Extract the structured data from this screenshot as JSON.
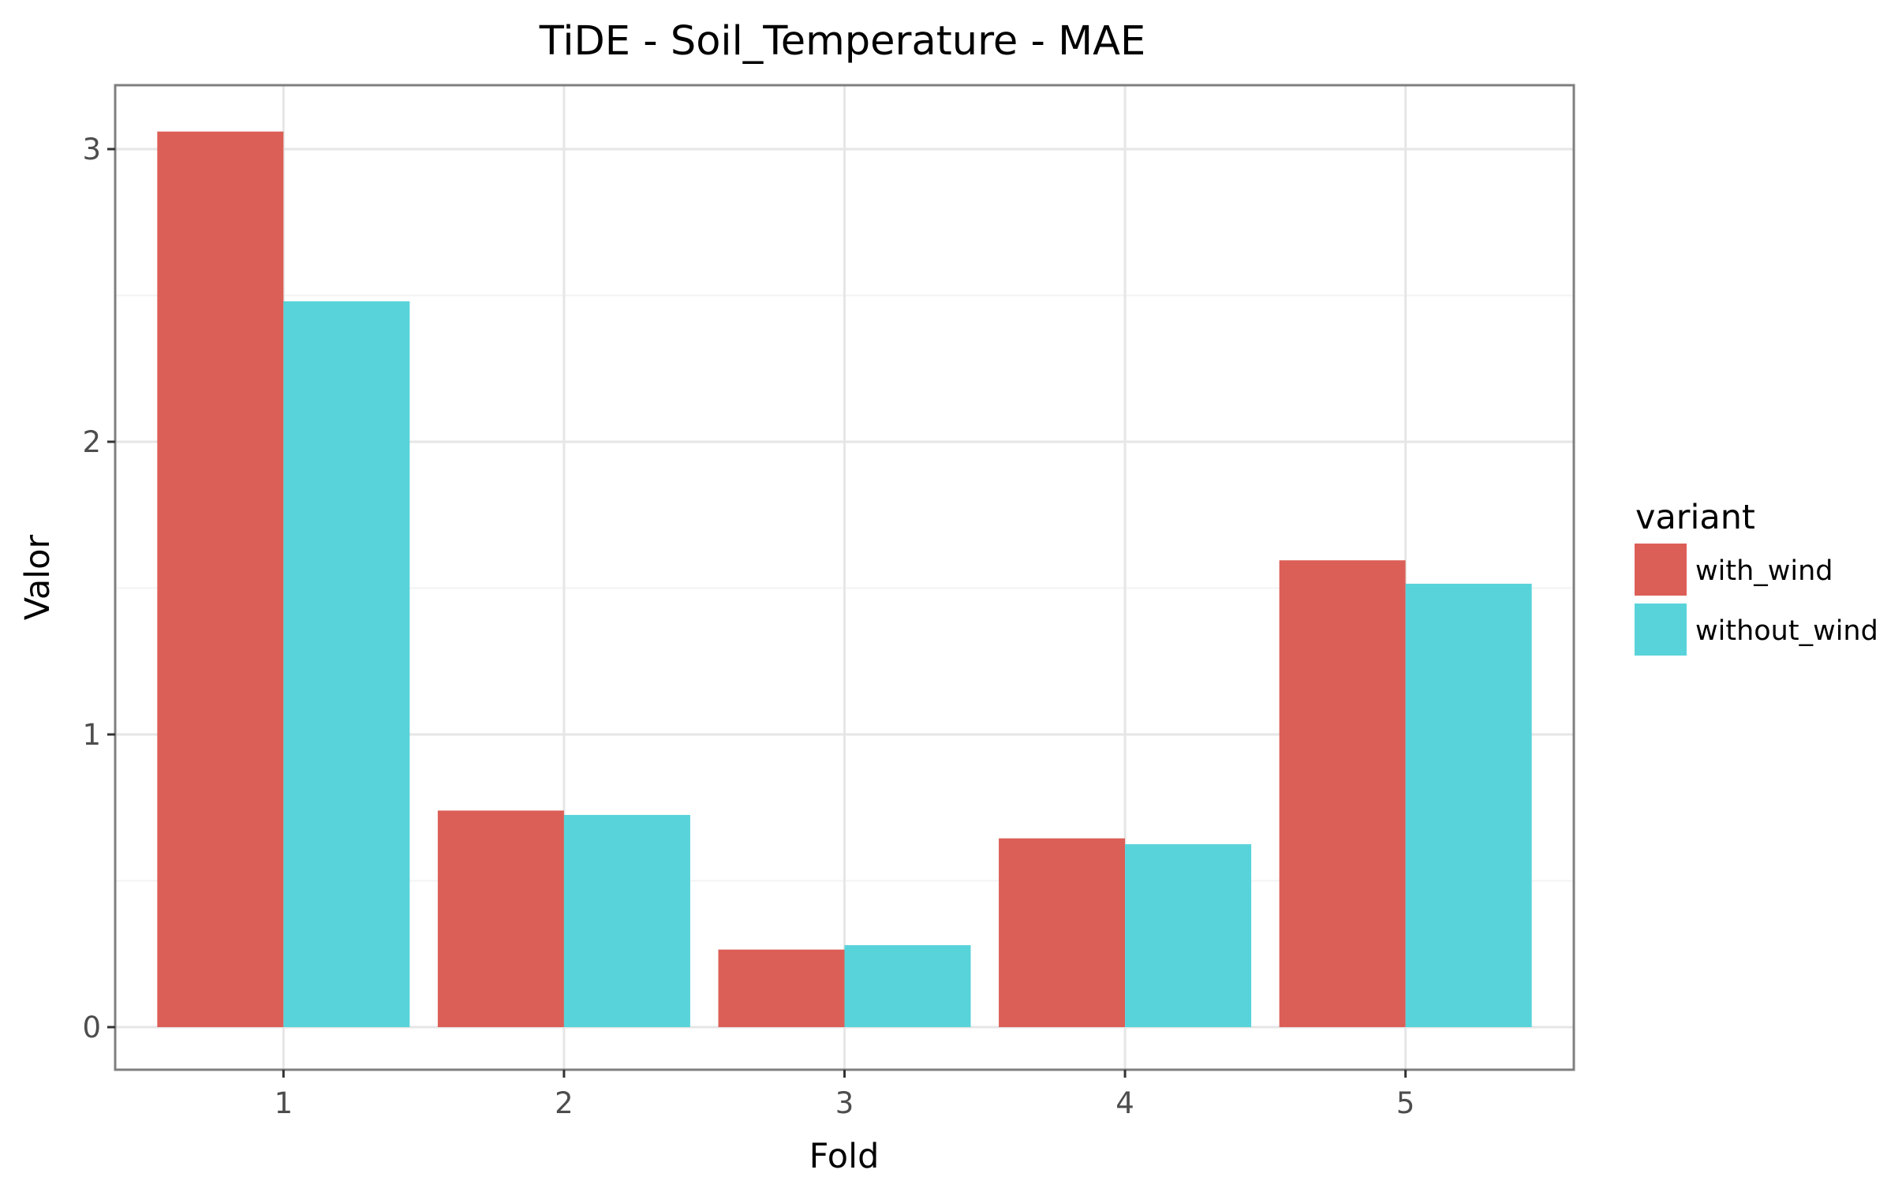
{
  "chart_data": {
    "type": "bar",
    "title": "TiDE - Soil_Temperature - MAE",
    "xlabel": "Fold",
    "ylabel": "Valor",
    "categories": [
      "1",
      "2",
      "3",
      "4",
      "5"
    ],
    "series": [
      {
        "name": "with_wind",
        "color": "#dc5f57",
        "values": [
          3.06,
          0.74,
          0.265,
          0.645,
          1.595
        ]
      },
      {
        "name": "without_wind",
        "color": "#59d3da",
        "values": [
          2.48,
          0.725,
          0.28,
          0.625,
          1.515
        ]
      }
    ],
    "yticks": [
      "0",
      "1",
      "2",
      "3"
    ],
    "ylim": [
      -0.15,
      3.22
    ],
    "grid": true,
    "legend": {
      "title": "variant",
      "position": "right"
    }
  }
}
